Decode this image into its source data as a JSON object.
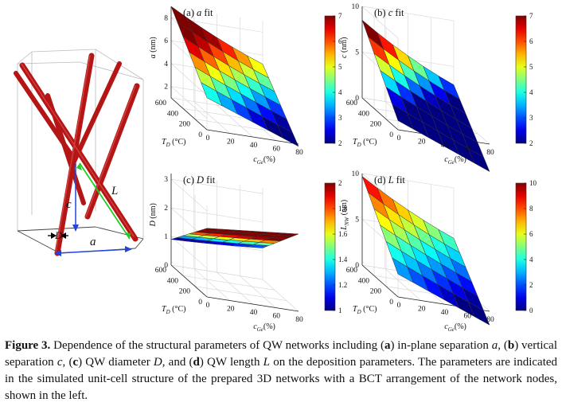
{
  "figure": {
    "schematic": {
      "labels": {
        "L": "L",
        "c": "c",
        "D": "D",
        "a": "a"
      }
    },
    "panels": [
      {
        "title_prefix": "(a) ",
        "title_var": "a",
        "title_suffix": " fit",
        "zlabel_main": "a",
        "zlabel_unit": " (nm)",
        "zlabel_sub": "",
        "zticks": [
          "2",
          "4",
          "6",
          "8"
        ],
        "zmin": 1,
        "zmax": 9,
        "colorbar": {
          "ticks": [
            "2",
            "3",
            "4",
            "5",
            "6",
            "7"
          ],
          "min": 2,
          "max": 7
        },
        "td_ticks": [
          "0",
          "200",
          "400",
          "600"
        ],
        "cge_ticks": [
          "0",
          "20",
          "40",
          "60",
          "80"
        ],
        "f": {
          "base": 6.0,
          "td": 2.2,
          "cge": -3.0,
          "curv": 0.8
        }
      },
      {
        "title_prefix": "(b) ",
        "title_var": "c",
        "title_suffix": " fit",
        "zlabel_main": "c",
        "zlabel_unit": " (nm)",
        "zlabel_sub": "",
        "zticks": [
          "0",
          "5",
          "10"
        ],
        "zmin": 0,
        "zmax": 10,
        "colorbar": {
          "ticks": [
            "2",
            "3",
            "4",
            "5",
            "6",
            "7"
          ],
          "min": 2,
          "max": 7
        },
        "td_ticks": [
          "0",
          "200",
          "400",
          "600"
        ],
        "cge_ticks": [
          "0",
          "20",
          "40",
          "60",
          "80"
        ],
        "f": {
          "base": 4.0,
          "td": 3.0,
          "cge": -4.0,
          "curv": 1.5
        }
      },
      {
        "title_prefix": "(c) ",
        "title_var": "D",
        "title_suffix": " fit",
        "zlabel_main": "D",
        "zlabel_unit": " (nm)",
        "zlabel_sub": "",
        "zticks": [
          "0",
          "1",
          "2",
          "3"
        ],
        "zmin": 0,
        "zmax": 3.2,
        "colorbar": {
          "ticks": [
            "1",
            "1.2",
            "1.4",
            "1.6",
            "1.8",
            "2"
          ],
          "min": 1,
          "max": 2
        },
        "td_ticks": [
          "0",
          "200",
          "400",
          "600"
        ],
        "cge_ticks": [
          "0",
          "20",
          "40",
          "60",
          "80"
        ],
        "f": {
          "base": 1.6,
          "td": -0.8,
          "cge": 0.3,
          "curv": 0.1
        }
      },
      {
        "title_prefix": "(d) ",
        "title_var": "L",
        "title_suffix": " fit",
        "zlabel_main": "L",
        "zlabel_unit": " (nm)",
        "zlabel_sub": "NW",
        "zticks": [
          "0",
          "5",
          "10"
        ],
        "zmin": 0,
        "zmax": 10,
        "colorbar": {
          "ticks": [
            "0",
            "2",
            "4",
            "6",
            "8",
            "10"
          ],
          "min": 0,
          "max": 10
        },
        "td_ticks": [
          "0",
          "200",
          "400",
          "600"
        ],
        "cge_ticks": [
          "0",
          "20",
          "40",
          "60",
          "80"
        ],
        "f": {
          "base": 5.5,
          "td": 3.0,
          "cge": -4.0,
          "curv": 1.2
        }
      }
    ],
    "xlabel_main": "c",
    "xlabel_sub": "Ge",
    "xlabel_unit": "(%)",
    "ylabel_main": "T",
    "ylabel_sub": "D",
    "ylabel_unit": " (°C)"
  },
  "caption": {
    "label": "Figure 3.",
    "text_1": " Dependence of the structural parameters of QW networks including (",
    "bold_a": "a",
    "text_2": ") in-plane separation ",
    "var_a": "a",
    "text_3": ", (",
    "bold_b": "b",
    "text_4": ") vertical separation ",
    "var_c": "c",
    "text_5": ", (",
    "bold_c": "c",
    "text_6": ") QW diameter ",
    "var_D": "D",
    "text_7": ", and (",
    "bold_d": "d",
    "text_8": ") QW length ",
    "var_L": "L",
    "text_9": " on the deposition parameters. The parameters are indicated in the simulated unit-cell structure of the prepared 3D networks with a BCT arrangement of the network nodes, shown in the left."
  }
}
